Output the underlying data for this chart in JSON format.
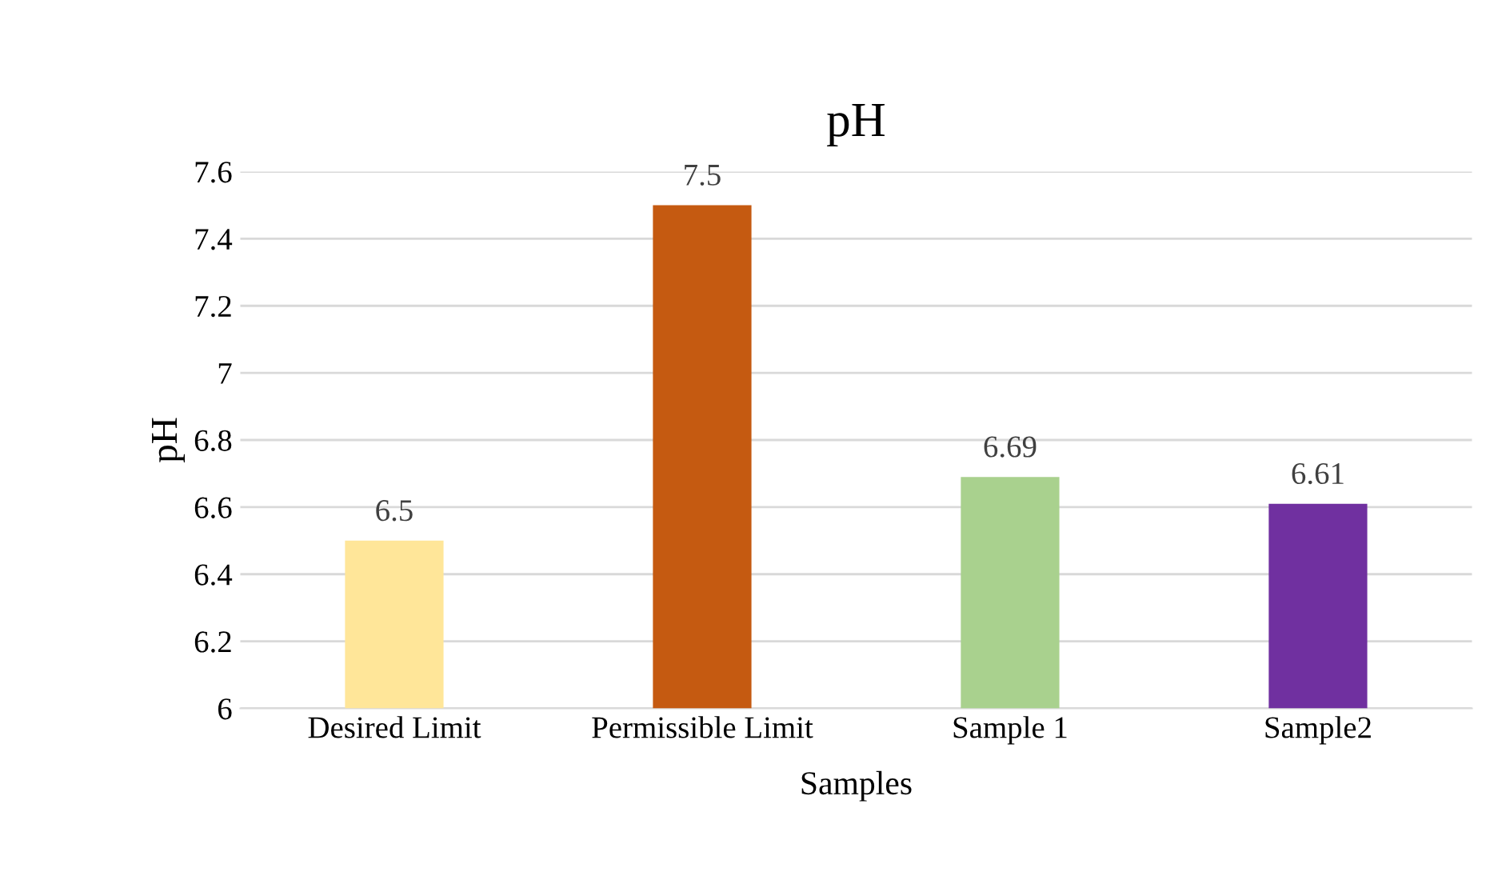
{
  "chart_data": {
    "type": "bar",
    "title": "pH",
    "xlabel": "Samples",
    "ylabel": "pH",
    "categories": [
      "Desired Limit",
      "Permissible Limit",
      "Sample 1",
      "Sample2"
    ],
    "values": [
      6.5,
      7.5,
      6.69,
      6.61
    ],
    "colors": [
      "#ffe699",
      "#c55a11",
      "#a9d18e",
      "#7030a0"
    ],
    "ylim": [
      6,
      7.6
    ],
    "yticks": [
      6,
      6.2,
      6.4,
      6.6,
      6.8,
      7,
      7.2,
      7.4,
      7.6
    ],
    "grid": "y",
    "data_labels": true,
    "legend": false
  }
}
